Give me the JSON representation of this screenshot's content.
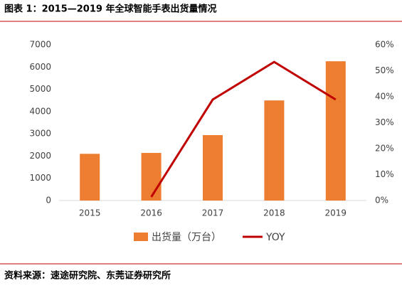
{
  "chart_data": {
    "type": "bar_line",
    "title": "图表 1：2015—2019 年全球智能手表出货量情况",
    "source": "资料来源：速途研究院、东莞证券研究所",
    "categories": [
      "2015",
      "2016",
      "2017",
      "2018",
      "2019"
    ],
    "series": [
      {
        "name": "出货量（万台）",
        "type": "bar",
        "color": "#ed7d31",
        "values": [
          2100,
          2140,
          2940,
          4500,
          6260
        ]
      },
      {
        "name": "YOY",
        "type": "line",
        "axis": "y2",
        "color": "#c00000",
        "values": [
          null,
          1.4,
          38.9,
          53.4,
          38.9
        ]
      }
    ],
    "ylim": [
      0,
      7000
    ],
    "yticks": [
      0,
      1000,
      2000,
      3000,
      4000,
      5000,
      6000,
      7000
    ],
    "y2lim": [
      0,
      60
    ],
    "y2ticks": [
      {
        "value": 0,
        "label": "0%"
      },
      {
        "value": 10,
        "label": "10%"
      },
      {
        "value": 20,
        "label": "20%"
      },
      {
        "value": 30,
        "label": "30%"
      },
      {
        "value": 40,
        "label": "40%"
      },
      {
        "value": 50,
        "label": "50%"
      },
      {
        "value": 60,
        "label": "60%"
      }
    ],
    "grid": false
  }
}
